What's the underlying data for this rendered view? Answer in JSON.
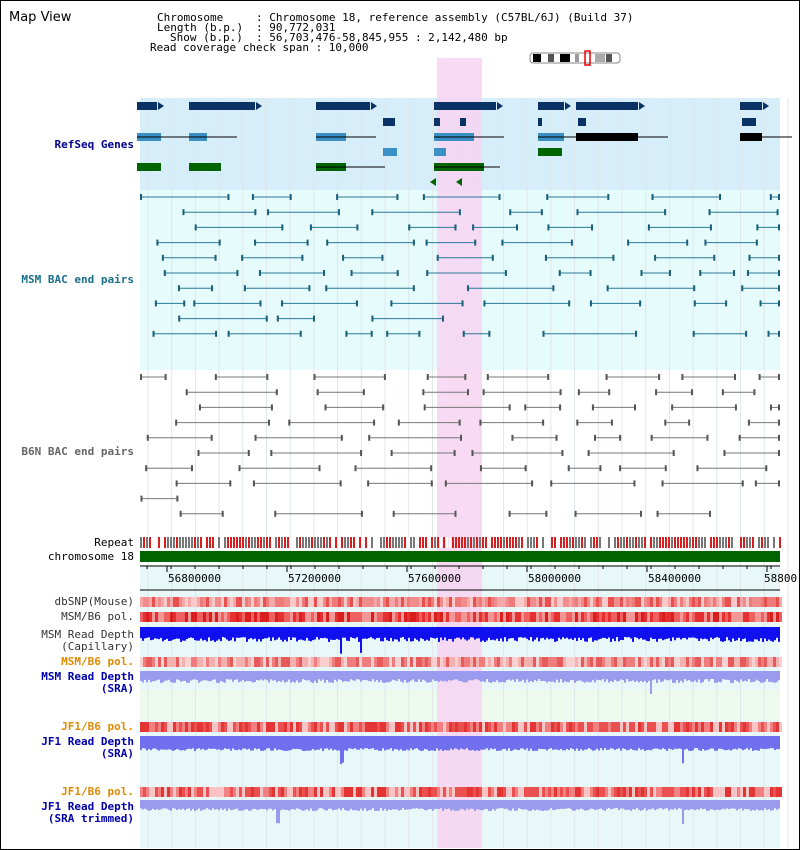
{
  "window": {
    "title": "Map View"
  },
  "info": {
    "chromosome_key": "Chromosome",
    "chromosome_val": ": Chromosome 18, reference assembly (C57BL/6J) (Build 37)",
    "length_key": "Length (b.p.)",
    "length_val": ": 90,772,031",
    "show_key": "Show (b.p.)",
    "show_val": ": 56,703,476-58,845,955 : 2,142,480 bp",
    "coverage": "Read coverage check span : 10,000"
  },
  "tracks": {
    "refseq": "RefSeq Genes",
    "msm_bac": "MSM BAC end pairs",
    "b6n_bac": "B6N BAC end pairs",
    "repeat": "Repeat",
    "chromosome": "chromosome 18",
    "dbsnp": "dbSNP(Mouse)",
    "msm_b6_pol": "MSM/B6 pol.",
    "msm_depth_cap_1": "MSM Read Depth",
    "msm_depth_cap_2": "(Capillary)",
    "msm_b6_pol_2": "MSM/B6 pol.",
    "msm_depth_sra_1": "MSM Read Depth",
    "msm_depth_sra_2": "(SRA)",
    "jf1_b6_pol": "JF1/B6 pol.",
    "jf1_depth_sra_1": "JF1 Read Depth",
    "jf1_depth_sra_2": "(SRA)",
    "jf1_b6_pol_2": "JF1/B6 pol.",
    "jf1_depth_trim_1": "JF1 Read Depth",
    "jf1_depth_trim_2": "(SRA trimmed)"
  },
  "ruler": {
    "ticks": [
      "56800000",
      "57200000",
      "57600000",
      "58000000",
      "58400000",
      "58800"
    ]
  },
  "colors": {
    "refseq_label": "#00008b",
    "msm_bac_label": "#1a6f8a",
    "b6n_label": "#666666",
    "pol_label": "#e08a00",
    "depth_label": "#0000aa",
    "highlight": "#f7d3f1",
    "chromosome_bar": "#006400"
  }
}
